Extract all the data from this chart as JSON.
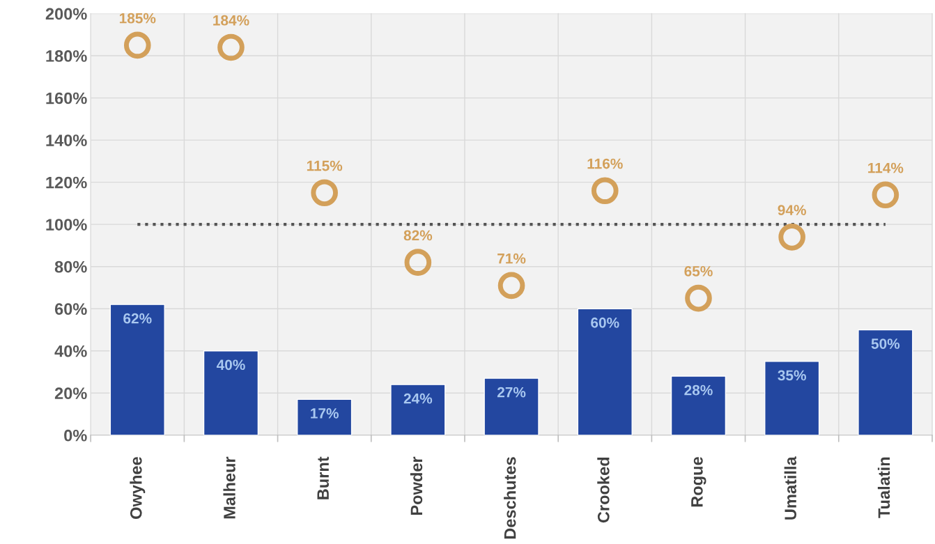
{
  "chart_data": {
    "type": "bar",
    "categories": [
      "Owyhee",
      "Malheur",
      "Burnt",
      "Powder",
      "Deschutes",
      "Crooked",
      "Rogue",
      "Umatilla",
      "Tualatin"
    ],
    "series": [
      {
        "color": "#2347a0",
        "values": [
          62,
          40,
          17,
          24,
          27,
          60,
          28,
          35,
          50
        ],
        "value_labels": [
          "62%",
          "40%",
          "17%",
          "24%",
          "27%",
          "60%",
          "28%",
          "35%",
          "50%"
        ]
      },
      {
        "type": "scatter",
        "color": "#d3a05a",
        "values": [
          185,
          184,
          115,
          82,
          71,
          116,
          65,
          94,
          114
        ],
        "value_labels": [
          "185%",
          "184%",
          "115%",
          "82%",
          "71%",
          "116%",
          "65%",
          "94%",
          "114%"
        ]
      }
    ],
    "ylim": [
      0,
      200
    ],
    "yticks": [
      {
        "value": 0,
        "label": "0%"
      },
      {
        "value": 20,
        "label": "20%"
      },
      {
        "value": 40,
        "label": "40%"
      },
      {
        "value": 60,
        "label": "60%"
      },
      {
        "value": 80,
        "label": "80%"
      },
      {
        "value": 100,
        "label": "100%"
      },
      {
        "value": 120,
        "label": "120%"
      },
      {
        "value": 140,
        "label": "140%"
      },
      {
        "value": 160,
        "label": "160%"
      },
      {
        "value": 180,
        "label": "180%"
      },
      {
        "value": 200,
        "label": "200%"
      }
    ],
    "ref_lines": [
      {
        "axis": "y",
        "value": 100,
        "color": "#555555",
        "line_style": "dotted"
      }
    ],
    "grid": true,
    "marker": "circle"
  }
}
